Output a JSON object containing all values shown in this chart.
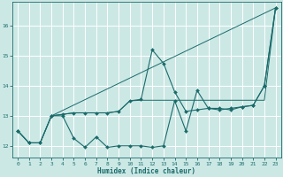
{
  "xlabel": "Humidex (Indice chaleur)",
  "bg_color": "#cce8e5",
  "line_color": "#1a6b6b",
  "grid_color": "#ffffff",
  "xlim": [
    -0.5,
    23.5
  ],
  "ylim": [
    11.6,
    16.8
  ],
  "xticks": [
    0,
    1,
    2,
    3,
    4,
    5,
    6,
    7,
    8,
    9,
    10,
    11,
    12,
    13,
    14,
    15,
    16,
    17,
    18,
    19,
    20,
    21,
    22,
    23
  ],
  "yticks": [
    12,
    13,
    14,
    15,
    16
  ],
  "series": {
    "line_zigzag": {
      "x": [
        0,
        1,
        2,
        3,
        4,
        5,
        6,
        7,
        8,
        9,
        10,
        11,
        12,
        13,
        14,
        15,
        16,
        17,
        18,
        19,
        20,
        21,
        22,
        23
      ],
      "y": [
        12.5,
        12.1,
        12.1,
        13.0,
        13.0,
        12.25,
        11.95,
        12.3,
        11.95,
        12.0,
        12.0,
        12.0,
        11.95,
        12.0,
        13.5,
        12.5,
        13.85,
        13.25,
        13.25,
        13.2,
        13.3,
        13.35,
        14.0,
        16.6
      ]
    },
    "line_smooth": {
      "x": [
        0,
        1,
        2,
        3,
        4,
        5,
        6,
        7,
        8,
        9,
        10,
        11,
        12,
        13,
        14,
        15,
        16,
        17,
        18,
        19,
        20,
        21,
        22,
        23
      ],
      "y": [
        12.5,
        12.1,
        12.1,
        13.0,
        13.05,
        13.1,
        13.1,
        13.1,
        13.1,
        13.15,
        13.5,
        13.55,
        15.2,
        14.75,
        13.8,
        13.15,
        13.2,
        13.25,
        13.2,
        13.25,
        13.3,
        13.35,
        14.0,
        16.6
      ]
    },
    "line_flat": {
      "x": [
        0,
        1,
        2,
        3,
        4,
        5,
        6,
        7,
        8,
        9,
        10,
        11,
        12,
        13,
        14,
        15,
        16,
        17,
        18,
        19,
        20,
        21,
        22,
        23
      ],
      "y": [
        12.5,
        12.1,
        12.1,
        13.0,
        13.05,
        13.1,
        13.1,
        13.1,
        13.1,
        13.15,
        13.5,
        13.52,
        13.52,
        13.52,
        13.52,
        13.52,
        13.52,
        13.52,
        13.52,
        13.52,
        13.52,
        13.52,
        13.52,
        16.6
      ]
    },
    "line_trend": {
      "x": [
        3,
        23
      ],
      "y": [
        13.0,
        16.6
      ]
    }
  }
}
